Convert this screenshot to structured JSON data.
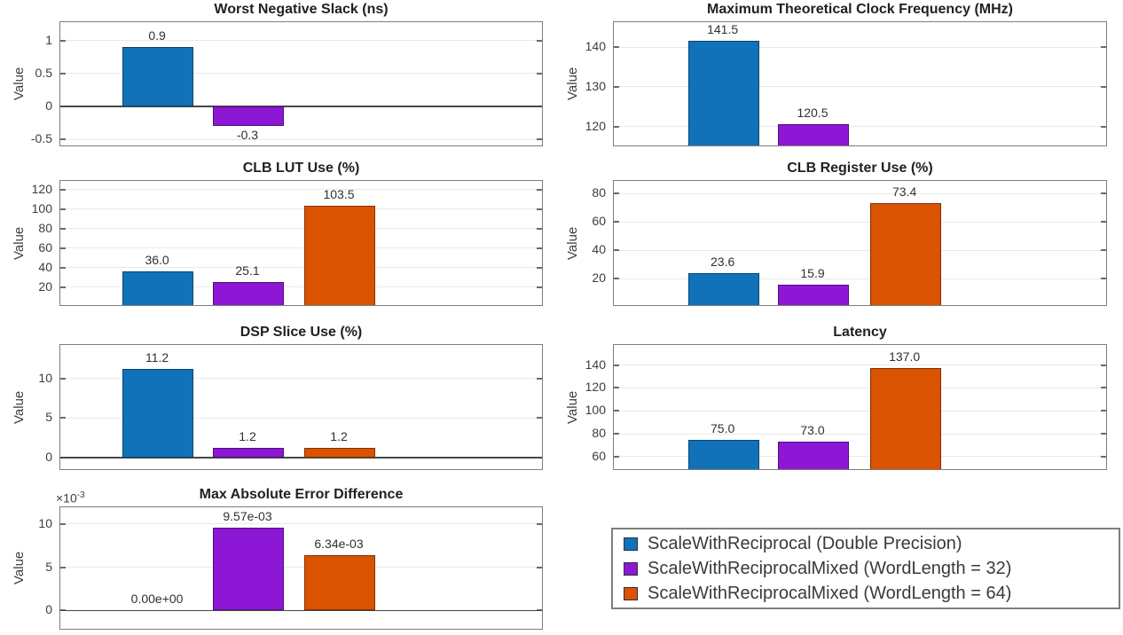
{
  "figure": {
    "kind": "MATLAB-style hardware comparison figure",
    "background": "#ffffff"
  },
  "colors": {
    "blue": "#1172BA",
    "purple": "#8C17D4",
    "orange": "#D95301",
    "frame": "#7E7E7E",
    "grid": "#E9E9E9",
    "zero_line": "#474747",
    "title_text": "#212121",
    "axis_text": "#3D3D3D"
  },
  "legend": {
    "position": "bottom-right",
    "entries": [
      {
        "color": "blue",
        "label": "ScaleWithReciprocal (Double Precision)"
      },
      {
        "color": "purple",
        "label": "ScaleWithReciprocalMixed (WordLength = 32)"
      },
      {
        "color": "orange",
        "label": "ScaleWithReciprocalMixed (WordLength = 64)"
      }
    ]
  },
  "chart_data": [
    {
      "type": "bar",
      "title": "Worst Negative Slack (ns)",
      "ylabel": "Value",
      "ylim": [
        -0.62,
        1.28
      ],
      "yticks": [
        -0.5,
        0,
        0.5,
        1
      ],
      "ytick_labels": [
        "-0.5",
        "0",
        "0.5",
        "1"
      ],
      "grid": true,
      "zero_line": true,
      "position": {
        "col": "left",
        "row": 1
      },
      "bars": [
        {
          "slot": 0,
          "color": "blue",
          "value": 0.9,
          "label": "0.9"
        },
        {
          "slot": 1,
          "color": "purple",
          "value": -0.3,
          "label": "-0.3"
        }
      ]
    },
    {
      "type": "bar",
      "title": "Maximum Theoretical Clock Frequency (MHz)",
      "ylabel": "Value",
      "ylim": [
        114.8,
        146.3
      ],
      "yticks": [
        120,
        130,
        140
      ],
      "ytick_labels": [
        "120",
        "130",
        "140"
      ],
      "grid": true,
      "zero_line": false,
      "position": {
        "col": "right",
        "row": 1
      },
      "bars": [
        {
          "slot": 0,
          "color": "blue",
          "value": 141.5,
          "label": "141.5"
        },
        {
          "slot": 1,
          "color": "purple",
          "value": 120.5,
          "label": "120.5"
        }
      ]
    },
    {
      "type": "bar",
      "title": "CLB LUT Use (%)",
      "ylabel": "Value",
      "ylim": [
        0,
        129
      ],
      "yticks": [
        20,
        40,
        60,
        80,
        100,
        120
      ],
      "ytick_labels": [
        "20",
        "40",
        "60",
        "80",
        "100",
        "120"
      ],
      "grid": true,
      "zero_line": false,
      "position": {
        "col": "left",
        "row": 2
      },
      "bars": [
        {
          "slot": 0,
          "color": "blue",
          "value": 36.0,
          "label": "36.0"
        },
        {
          "slot": 1,
          "color": "purple",
          "value": 25.1,
          "label": "25.1"
        },
        {
          "slot": 2,
          "color": "orange",
          "value": 103.5,
          "label": "103.5"
        }
      ]
    },
    {
      "type": "bar",
      "title": "CLB Register Use (%)",
      "ylabel": "Value",
      "ylim": [
        0,
        89
      ],
      "yticks": [
        20,
        40,
        60,
        80
      ],
      "ytick_labels": [
        "20",
        "40",
        "60",
        "80"
      ],
      "grid": true,
      "zero_line": false,
      "position": {
        "col": "right",
        "row": 2
      },
      "bars": [
        {
          "slot": 0,
          "color": "blue",
          "value": 23.6,
          "label": "23.6"
        },
        {
          "slot": 1,
          "color": "purple",
          "value": 15.9,
          "label": "15.9"
        },
        {
          "slot": 2,
          "color": "orange",
          "value": 73.4,
          "label": "73.4"
        }
      ]
    },
    {
      "type": "bar",
      "title": "DSP Slice Use (%)",
      "ylabel": "Value",
      "ylim": [
        -1.7,
        14.2
      ],
      "yticks": [
        0,
        5,
        10
      ],
      "ytick_labels": [
        "0",
        "5",
        "10"
      ],
      "grid": true,
      "zero_line": true,
      "position": {
        "col": "left",
        "row": 3
      },
      "bars": [
        {
          "slot": 0,
          "color": "blue",
          "value": 11.2,
          "label": "11.2"
        },
        {
          "slot": 1,
          "color": "purple",
          "value": 1.2,
          "label": "1.2"
        },
        {
          "slot": 2,
          "color": "orange",
          "value": 1.2,
          "label": "1.2"
        }
      ]
    },
    {
      "type": "bar",
      "title": "Latency",
      "ylabel": "Value",
      "ylim": [
        47.5,
        157.5
      ],
      "yticks": [
        60,
        80,
        100,
        120,
        140
      ],
      "ytick_labels": [
        "60",
        "80",
        "100",
        "120",
        "140"
      ],
      "grid": true,
      "zero_line": false,
      "position": {
        "col": "right",
        "row": 3
      },
      "bars": [
        {
          "slot": 0,
          "color": "blue",
          "value": 75.0,
          "label": "75.0"
        },
        {
          "slot": 1,
          "color": "purple",
          "value": 73.0,
          "label": "73.0"
        },
        {
          "slot": 2,
          "color": "orange",
          "value": 137.0,
          "label": "137.0"
        }
      ]
    },
    {
      "type": "bar",
      "title": "Max Absolute Error Difference",
      "ylabel": "Value",
      "value_scale": "1e-3",
      "offset_label": {
        "base": "×10",
        "exponent": "-3"
      },
      "ylim": [
        -2.3,
        11.9
      ],
      "yticks": [
        0,
        5,
        10
      ],
      "ytick_labels": [
        "0",
        "5",
        "10"
      ],
      "grid": true,
      "zero_line": true,
      "position": {
        "col": "left",
        "row": 4
      },
      "bars": [
        {
          "slot": 0,
          "color": "blue",
          "value": 0,
          "label": "0.00e+00"
        },
        {
          "slot": 1,
          "color": "purple",
          "value": 9.57,
          "label": "9.57e-03"
        },
        {
          "slot": 2,
          "color": "orange",
          "value": 6.34,
          "label": "6.34e-03"
        }
      ]
    }
  ]
}
